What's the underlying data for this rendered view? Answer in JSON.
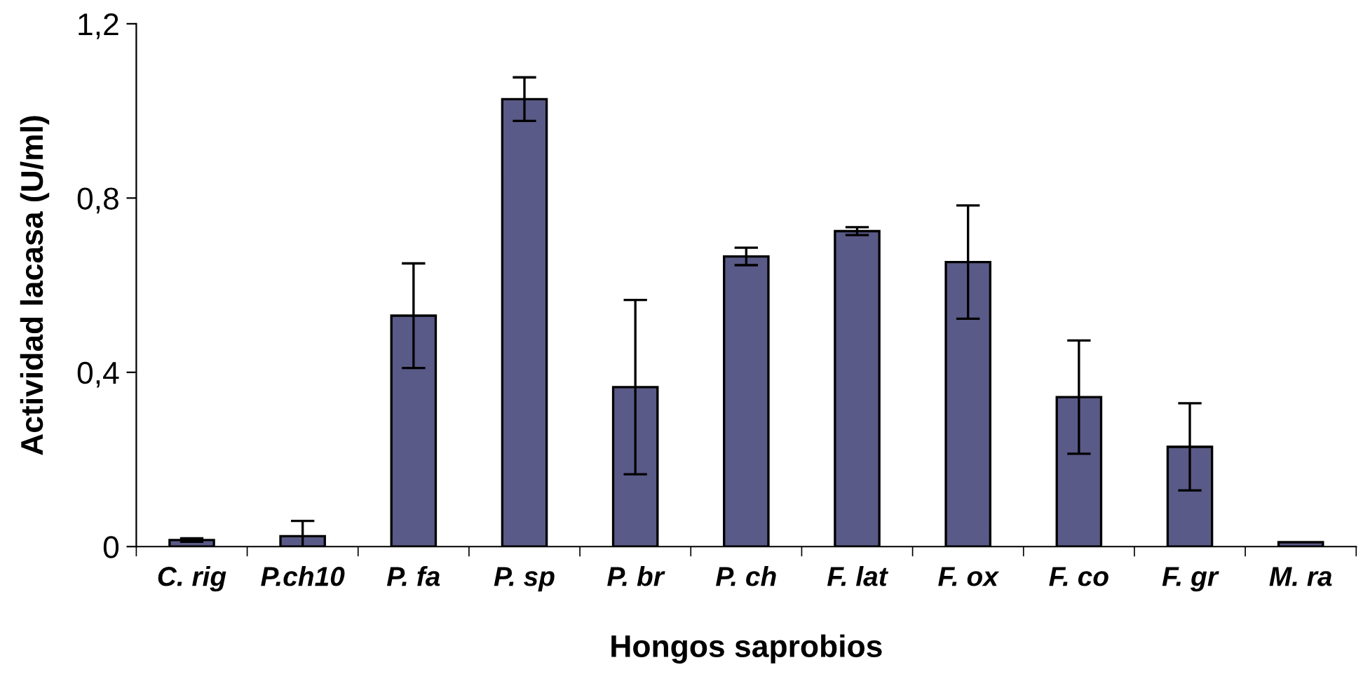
{
  "chart_data": {
    "type": "bar",
    "xlabel": "Hongos saprobios",
    "ylabel": "Actividad lacasa (U/ml)",
    "categories": [
      "C. rig",
      "P.ch10",
      "P. fa",
      "P. sp",
      "P. br",
      "P. ch",
      "F. lat",
      "F. ox",
      "F. co",
      "F. gr",
      "M. ra"
    ],
    "values": [
      0.015,
      0.024,
      0.53,
      1.027,
      0.366,
      0.666,
      0.724,
      0.653,
      0.343,
      0.229,
      0.01
    ],
    "errors": [
      0.004,
      0.035,
      0.12,
      0.05,
      0.2,
      0.02,
      0.009,
      0.13,
      0.13,
      0.1,
      null
    ],
    "color": "#5a5a88",
    "ylim": [
      0,
      1.2
    ],
    "yticks": [
      {
        "value": 0,
        "label": "0"
      },
      {
        "value": 0.4,
        "label": "0,4"
      },
      {
        "value": 0.8,
        "label": "0,8"
      },
      {
        "value": 1.2,
        "label": "1,2"
      }
    ],
    "grid": false
  }
}
